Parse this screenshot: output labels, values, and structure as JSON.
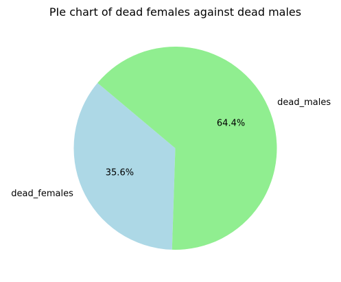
{
  "chart_data": {
    "type": "pie",
    "title": "PIe chart of dead females against dead males",
    "slices": [
      {
        "label": "dead_females",
        "value": 35.6,
        "pct_label": "35.6%",
        "color": "#add8e6"
      },
      {
        "label": "dead_males",
        "value": 64.4,
        "pct_label": "64.4%",
        "color": "#90ee90"
      }
    ],
    "start_angle_deg": 140,
    "direction": "counterclockwise"
  }
}
